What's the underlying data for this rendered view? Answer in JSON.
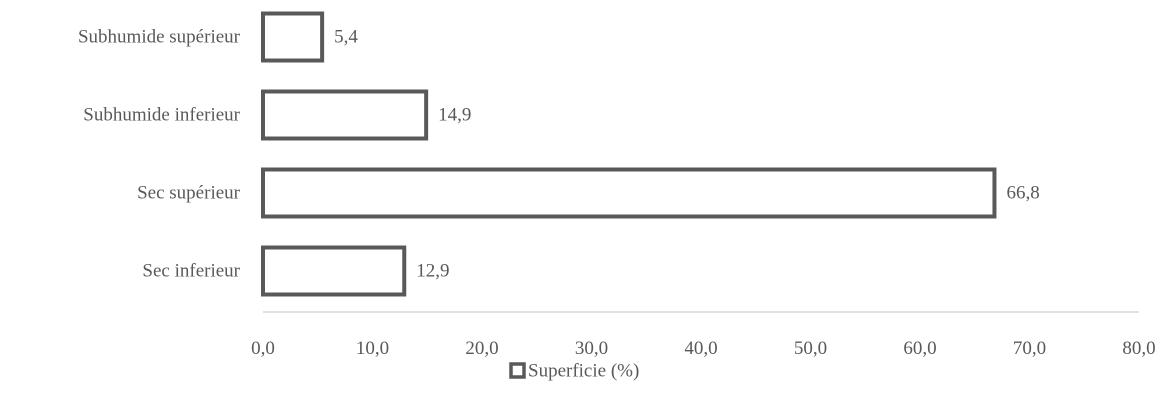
{
  "chart_data": {
    "type": "bar",
    "orientation": "horizontal",
    "categories": [
      "Subhumide supérieur",
      "Subhumide inferieur",
      "Sec supérieur",
      "Sec inferieur"
    ],
    "series": [
      {
        "name": "Superficie (%)",
        "values": [
          5.4,
          14.9,
          66.8,
          12.9
        ],
        "value_labels": [
          "5,4",
          "14,9",
          "66,8",
          "12,9"
        ]
      }
    ],
    "x_ticks": [
      "0,0",
      "10,0",
      "20,0",
      "30,0",
      "40,0",
      "50,0",
      "60,0",
      "70,0",
      "80,0"
    ],
    "xlim": [
      0,
      80
    ],
    "grid": false,
    "legend_position": "bottom",
    "colors": {
      "bar_fill": "#ffffff",
      "bar_stroke": "#595959",
      "axis": "#d9d9d9",
      "text": "#595959"
    }
  }
}
